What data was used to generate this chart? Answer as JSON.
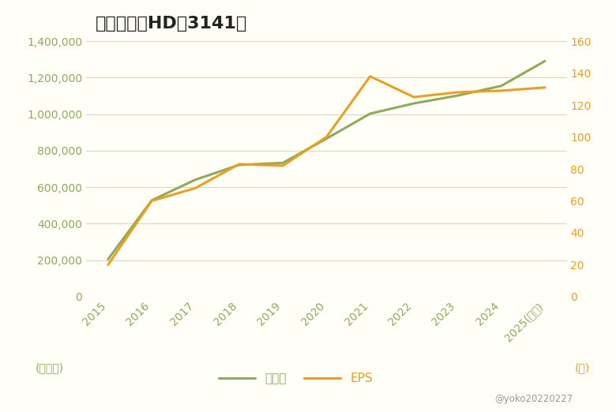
{
  "title": "ウエルシアHD（3141）",
  "years": [
    "2015",
    "2016",
    "2017",
    "2018",
    "2019",
    "2020",
    "2021",
    "2022",
    "2023",
    "2024",
    "2025(予想)"
  ],
  "sales": [
    205000,
    528000,
    641000,
    722000,
    733000,
    866000,
    1003000,
    1059000,
    1102000,
    1155000,
    1291000
  ],
  "eps": [
    20,
    60,
    68,
    83,
    82,
    100,
    138,
    125,
    128,
    129,
    131
  ],
  "sales_color": "#8faa5a",
  "eps_color": "#e8a020",
  "left_label_color": "#8faa5a",
  "right_label_color": "#e8a020",
  "left_ylabel": "(百万円)",
  "right_ylabel": "(円)",
  "ylim_left": [
    0,
    1400000
  ],
  "ylim_right": [
    0,
    160
  ],
  "yticks_left": [
    0,
    200000,
    400000,
    600000,
    800000,
    1000000,
    1200000,
    1400000
  ],
  "yticks_right": [
    0,
    20,
    40,
    60,
    80,
    100,
    120,
    140,
    160
  ],
  "background_color": "#fffff7",
  "grid_color": "#d8d8c0",
  "legend_sales": "売上高",
  "legend_eps": "EPS",
  "watermark": "@yoko20220227",
  "title_fontsize": 16,
  "axis_fontsize": 10,
  "legend_fontsize": 11,
  "tick_color": "#8faa5a"
}
